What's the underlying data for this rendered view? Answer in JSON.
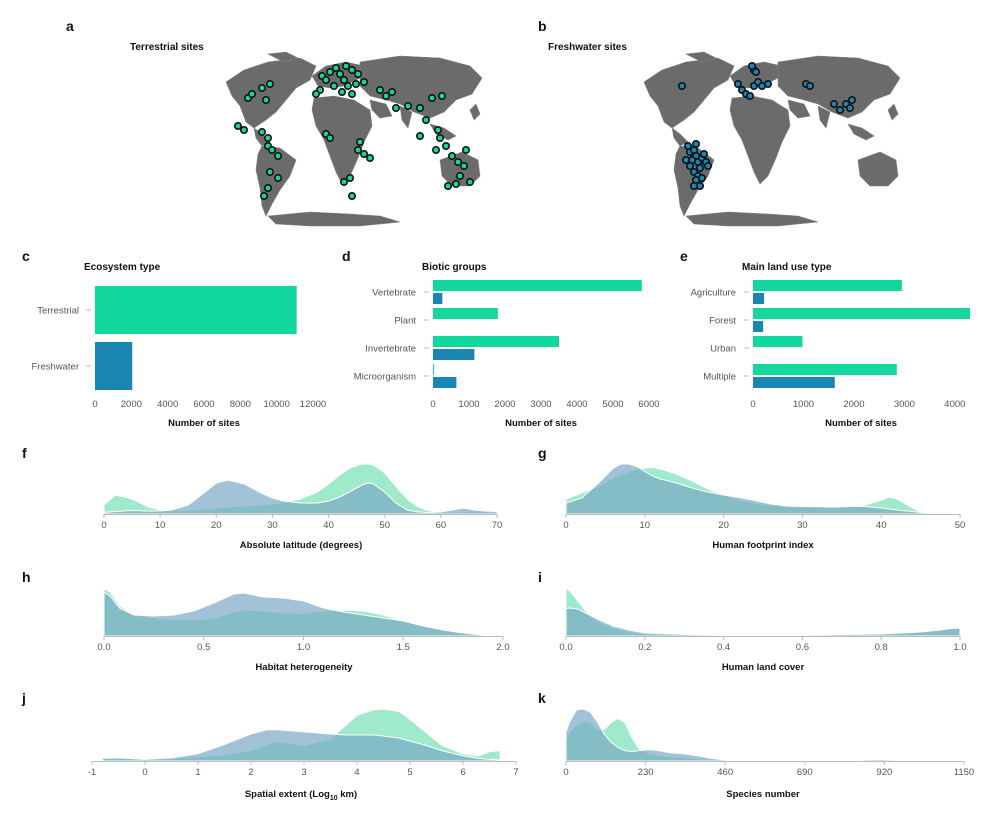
{
  "panels": {
    "a": {
      "label": "a",
      "title": "Terrestrial sites"
    },
    "b": {
      "label": "b",
      "title": "Freshwater sites"
    },
    "c": {
      "label": "c",
      "title": "Ecosystem type",
      "xlabel": "Number of sites"
    },
    "d": {
      "label": "d",
      "title": "Biotic groups",
      "xlabel": "Number of sites"
    },
    "e": {
      "label": "e",
      "title": "Main land use type",
      "xlabel": "Number of sites"
    },
    "f": {
      "label": "f",
      "xlabel": "Absolute latitude (degrees)"
    },
    "g": {
      "label": "g",
      "xlabel": "Human footprint index"
    },
    "h": {
      "label": "h",
      "xlabel": "Habitat heterogeneity"
    },
    "i": {
      "label": "i",
      "xlabel": "Human land cover"
    },
    "j": {
      "label": "j",
      "xlabel_main": "Spatial extent (Log",
      "xlabel_sub": "10",
      "xlabel_end": " km)"
    },
    "k": {
      "label": "k",
      "xlabel": "Species number"
    }
  },
  "colors": {
    "terrestrial": "#12d89e",
    "freshwater": "#1a86b4",
    "terr_density": "#7fe3b8",
    "fresh_density": "#7ba9c6",
    "land": "#6b6b6b"
  },
  "chart_data": [
    {
      "id": "a",
      "type": "scatter",
      "subtype": "map",
      "title": "Terrestrial sites",
      "marker_color": "#12d89e",
      "regions": [
        "North America",
        "South America",
        "Europe",
        "Africa",
        "Asia",
        "Southeast Asia",
        "Oceania"
      ]
    },
    {
      "id": "b",
      "type": "scatter",
      "subtype": "map",
      "title": "Freshwater sites",
      "marker_color": "#1a86b4",
      "regions": [
        "Western Europe",
        "Eastern Europe",
        "South Asia",
        "East Asia",
        "South America (Brazil)"
      ]
    },
    {
      "id": "c",
      "type": "bar",
      "orientation": "horizontal",
      "title": "Ecosystem type",
      "categories": [
        "Terrestrial",
        "Freshwater"
      ],
      "values": [
        11100,
        2050
      ],
      "colors": [
        "#12d89e",
        "#1a86b4"
      ],
      "xlim": [
        0,
        12000
      ],
      "xticks": [
        0,
        2000,
        4000,
        6000,
        8000,
        10000,
        12000
      ],
      "xlabel": "Number of sites"
    },
    {
      "id": "d",
      "type": "bar",
      "orientation": "horizontal",
      "title": "Biotic groups",
      "categories": [
        "Vertebrate",
        "Plant",
        "Invertebrate",
        "Microorganism"
      ],
      "series": [
        {
          "values": [
            5800,
            1800,
            3500,
            30
          ],
          "color": "#12d89e"
        },
        {
          "values": [
            260,
            0,
            1150,
            650
          ],
          "color": "#1a86b4"
        }
      ],
      "xlim": [
        0,
        6000
      ],
      "xticks": [
        0,
        1000,
        2000,
        3000,
        4000,
        5000,
        6000
      ],
      "xlabel": "Number of sites"
    },
    {
      "id": "e",
      "type": "bar",
      "orientation": "horizontal",
      "title": "Main land use type",
      "categories": [
        "Agriculture",
        "Forest",
        "Urban",
        "Multiple"
      ],
      "series": [
        {
          "values": [
            2950,
            4300,
            980,
            2850
          ],
          "color": "#12d89e"
        },
        {
          "values": [
            220,
            200,
            0,
            1620
          ],
          "color": "#1a86b4"
        }
      ],
      "xlim": [
        0,
        4300
      ],
      "xticks": [
        0,
        1000,
        2000,
        3000,
        4000
      ],
      "xlabel": "Number of sites"
    },
    {
      "id": "f",
      "type": "area",
      "xlabel": "Absolute latitude (degrees)",
      "xlim": [
        0,
        70
      ],
      "xticks": [
        "0",
        "10",
        "20",
        "30",
        "40",
        "50",
        "60",
        "70"
      ],
      "series": [
        {
          "color": "#7fe3b8",
          "x": [
            0,
            2,
            5,
            8,
            10,
            12,
            15,
            18,
            20,
            22,
            25,
            28,
            30,
            32,
            35,
            38,
            40,
            42,
            44,
            46,
            47,
            48,
            50,
            52,
            54,
            56,
            58,
            60,
            62,
            64,
            66,
            68,
            70
          ],
          "y": [
            0.18,
            0.38,
            0.3,
            0.14,
            0.08,
            0.06,
            0.07,
            0.1,
            0.12,
            0.14,
            0.16,
            0.18,
            0.2,
            0.24,
            0.3,
            0.44,
            0.6,
            0.78,
            0.93,
            1.0,
            1.0,
            0.98,
            0.82,
            0.55,
            0.3,
            0.14,
            0.06,
            0.04,
            0.03,
            0.04,
            0.06,
            0.05,
            0.02
          ]
        },
        {
          "color": "#7ba9c6",
          "x": [
            0,
            2,
            5,
            8,
            10,
            12,
            15,
            18,
            20,
            22,
            25,
            28,
            30,
            32,
            35,
            38,
            40,
            42,
            44,
            46,
            47,
            48,
            50,
            52,
            54,
            56,
            58,
            60,
            62,
            64,
            66,
            68,
            70
          ],
          "y": [
            0.03,
            0.05,
            0.07,
            0.06,
            0.06,
            0.08,
            0.18,
            0.44,
            0.62,
            0.68,
            0.6,
            0.42,
            0.32,
            0.26,
            0.22,
            0.22,
            0.26,
            0.34,
            0.46,
            0.58,
            0.62,
            0.6,
            0.44,
            0.22,
            0.08,
            0.04,
            0.03,
            0.04,
            0.08,
            0.12,
            0.08,
            0.06,
            0.05
          ]
        }
      ]
    },
    {
      "id": "g",
      "type": "area",
      "xlabel": "Human footprint index",
      "xlim": [
        0,
        50
      ],
      "xticks": [
        "0",
        "10",
        "20",
        "30",
        "40",
        "50"
      ],
      "series": [
        {
          "color": "#7fe3b8",
          "x": [
            0,
            2,
            4,
            6,
            7,
            8,
            9,
            10,
            11,
            12,
            14,
            16,
            18,
            20,
            22,
            24,
            26,
            28,
            30,
            32,
            34,
            36,
            38,
            40,
            41,
            42,
            44,
            45,
            46,
            48,
            50
          ],
          "y": [
            0.3,
            0.42,
            0.55,
            0.72,
            0.8,
            0.85,
            0.9,
            0.92,
            0.93,
            0.9,
            0.8,
            0.66,
            0.5,
            0.38,
            0.28,
            0.22,
            0.18,
            0.15,
            0.14,
            0.13,
            0.13,
            0.14,
            0.18,
            0.28,
            0.34,
            0.3,
            0.12,
            0.04,
            0.01,
            0,
            0
          ]
        },
        {
          "color": "#7ba9c6",
          "x": [
            0,
            2,
            4,
            6,
            7,
            8,
            9,
            10,
            11,
            12,
            14,
            16,
            18,
            20,
            22,
            24,
            26,
            28,
            30,
            32,
            34,
            36,
            38,
            40,
            41,
            42,
            44,
            45,
            46,
            48,
            50
          ],
          "y": [
            0.22,
            0.32,
            0.6,
            0.92,
            1.0,
            1.0,
            0.95,
            0.85,
            0.76,
            0.7,
            0.62,
            0.52,
            0.44,
            0.38,
            0.33,
            0.27,
            0.2,
            0.16,
            0.15,
            0.15,
            0.14,
            0.15,
            0.15,
            0.12,
            0.1,
            0.08,
            0.05,
            0.03,
            0.02,
            0.01,
            0
          ]
        }
      ]
    },
    {
      "id": "h",
      "type": "area",
      "xlabel": "Habitat heterogeneity",
      "xlim": [
        0,
        2
      ],
      "xticks": [
        "0.0",
        "0.5",
        "1.0",
        "1.5",
        "2.0"
      ],
      "series": [
        {
          "color": "#7fe3b8",
          "x": [
            0,
            0.03,
            0.08,
            0.15,
            0.25,
            0.35,
            0.45,
            0.55,
            0.65,
            0.7,
            0.8,
            0.9,
            1.0,
            1.1,
            1.2,
            1.3,
            1.4,
            1.5,
            1.6,
            1.7,
            1.8,
            1.9,
            2.0
          ],
          "y": [
            0.95,
            0.88,
            0.6,
            0.42,
            0.36,
            0.33,
            0.32,
            0.36,
            0.48,
            0.52,
            0.5,
            0.46,
            0.45,
            0.5,
            0.52,
            0.5,
            0.42,
            0.3,
            0.2,
            0.12,
            0.06,
            0.02,
            0
          ]
        },
        {
          "color": "#7ba9c6",
          "x": [
            0,
            0.03,
            0.08,
            0.15,
            0.25,
            0.35,
            0.45,
            0.55,
            0.65,
            0.7,
            0.8,
            0.9,
            1.0,
            1.1,
            1.2,
            1.3,
            1.4,
            1.5,
            1.6,
            1.7,
            1.8,
            1.9,
            2.0
          ],
          "y": [
            0.88,
            0.8,
            0.55,
            0.42,
            0.4,
            0.42,
            0.5,
            0.66,
            0.84,
            0.86,
            0.78,
            0.76,
            0.7,
            0.56,
            0.48,
            0.42,
            0.36,
            0.3,
            0.2,
            0.12,
            0.06,
            0.02,
            0
          ]
        }
      ]
    },
    {
      "id": "i",
      "type": "area",
      "xlabel": "Human land cover",
      "xlim": [
        0,
        1
      ],
      "xticks": [
        "0.0",
        "0.2",
        "0.4",
        "0.6",
        "0.8",
        "1.0"
      ],
      "series": [
        {
          "color": "#7fe3b8",
          "x": [
            0,
            0.01,
            0.03,
            0.05,
            0.08,
            0.12,
            0.16,
            0.2,
            0.3,
            0.4,
            0.5,
            0.6,
            0.7,
            0.8,
            0.85,
            0.9,
            0.95,
            0.98,
            1.0
          ],
          "y": [
            0.95,
            0.9,
            0.7,
            0.5,
            0.3,
            0.16,
            0.08,
            0.05,
            0.03,
            0.02,
            0.02,
            0.02,
            0.03,
            0.04,
            0.06,
            0.08,
            0.12,
            0.15,
            0.16
          ]
        },
        {
          "color": "#7ba9c6",
          "x": [
            0,
            0.01,
            0.03,
            0.05,
            0.08,
            0.12,
            0.16,
            0.2,
            0.3,
            0.4,
            0.5,
            0.6,
            0.7,
            0.8,
            0.85,
            0.9,
            0.95,
            0.98,
            1.0
          ],
          "y": [
            0.55,
            0.56,
            0.54,
            0.46,
            0.34,
            0.2,
            0.12,
            0.06,
            0.03,
            0.02,
            0.02,
            0.02,
            0.03,
            0.04,
            0.06,
            0.08,
            0.12,
            0.15,
            0.16
          ]
        }
      ]
    },
    {
      "id": "j",
      "type": "area",
      "xlabel": "Spatial extent (Log10 km)",
      "xlim": [
        -1,
        7
      ],
      "xticks": [
        "-1",
        "0",
        "1",
        "2",
        "3",
        "4",
        "5",
        "6",
        "7"
      ],
      "series": [
        {
          "color": "#7fe3b8",
          "x": [
            -0.8,
            -0.5,
            -0.2,
            0,
            0.5,
            1,
            1.5,
            2,
            2.3,
            2.5,
            3,
            3.5,
            3.8,
            4,
            4.3,
            4.5,
            4.8,
            5,
            5.3,
            5.6,
            6,
            6.3,
            6.5,
            6.7
          ],
          "y": [
            0.05,
            0.06,
            0.04,
            0.03,
            0.05,
            0.08,
            0.12,
            0.2,
            0.32,
            0.38,
            0.3,
            0.42,
            0.7,
            0.88,
            0.98,
            1.0,
            0.95,
            0.8,
            0.55,
            0.3,
            0.14,
            0.1,
            0.18,
            0.2
          ]
        },
        {
          "color": "#7ba9c6",
          "x": [
            -0.8,
            -0.5,
            -0.2,
            0,
            0.5,
            1,
            1.5,
            2,
            2.3,
            2.5,
            3,
            3.5,
            3.8,
            4,
            4.3,
            4.5,
            4.8,
            5,
            5.3,
            5.6,
            6,
            6.3,
            6.5,
            6.7
          ],
          "y": [
            0.05,
            0.06,
            0.04,
            0.03,
            0.06,
            0.14,
            0.32,
            0.52,
            0.6,
            0.6,
            0.56,
            0.52,
            0.5,
            0.5,
            0.5,
            0.48,
            0.44,
            0.38,
            0.3,
            0.2,
            0.1,
            0.05,
            0.03,
            0.02
          ]
        }
      ]
    },
    {
      "id": "k",
      "type": "area",
      "xlabel": "Species number",
      "xlim": [
        0,
        1150
      ],
      "xticks": [
        "0",
        "230",
        "460",
        "690",
        "920",
        "1150"
      ],
      "series": [
        {
          "color": "#7fe3b8",
          "x": [
            0,
            10,
            30,
            50,
            70,
            90,
            110,
            130,
            150,
            170,
            190,
            210,
            240,
            270,
            300,
            340,
            380,
            420,
            460,
            520,
            600,
            700,
            800,
            900,
            1000,
            1100,
            1150
          ],
          "y": [
            0.42,
            0.56,
            0.7,
            0.76,
            0.74,
            0.62,
            0.6,
            0.74,
            0.82,
            0.74,
            0.46,
            0.24,
            0.14,
            0.1,
            0.08,
            0.06,
            0.05,
            0.03,
            0.02,
            0.01,
            0.01,
            0.01,
            0.01,
            0.01,
            0.01,
            0.01,
            0
          ]
        },
        {
          "color": "#7ba9c6",
          "x": [
            0,
            10,
            30,
            50,
            70,
            90,
            110,
            130,
            150,
            170,
            190,
            210,
            240,
            270,
            300,
            340,
            380,
            420,
            460,
            520,
            600,
            700,
            800,
            900,
            1000,
            1100,
            1150
          ],
          "y": [
            0.55,
            0.75,
            0.98,
            1.0,
            0.94,
            0.76,
            0.52,
            0.36,
            0.26,
            0.2,
            0.18,
            0.2,
            0.22,
            0.2,
            0.16,
            0.14,
            0.1,
            0.05,
            0.02,
            0.01,
            0.01,
            0.01,
            0.01,
            0.03,
            0.01,
            0.01,
            0
          ]
        }
      ]
    }
  ]
}
